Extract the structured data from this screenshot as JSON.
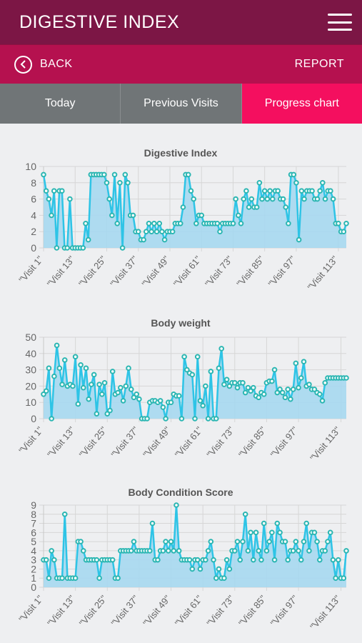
{
  "header": {
    "title": "DIGESTIVE INDEX"
  },
  "nav": {
    "back_label": "BACK",
    "report_label": "REPORT"
  },
  "tabs": [
    {
      "label": "Today",
      "active": false
    },
    {
      "label": "Previous Visits",
      "active": false
    },
    {
      "label": "Progress chart",
      "active": true
    }
  ],
  "colors": {
    "topbar": "#7c1645",
    "navbar": "#b5114f",
    "tab": "#707577",
    "tab_active": "#f40f5f",
    "line": "#2ec4e6",
    "fill": "#a6d8f0",
    "point": "#2bb6b2"
  },
  "chart_data": [
    {
      "type": "area",
      "title": "Digestive Index",
      "ylim": [
        0,
        10
      ],
      "yticks": [
        0,
        2,
        4,
        6,
        8,
        10
      ],
      "xtick_labels": [
        "\"Visit 1\"",
        "\"Visit 13\"",
        "\"Visit 25\"",
        "\"Visit 37\"",
        "\"Visit 49\"",
        "\"Visit 61\"",
        "\"Visit 73\"",
        "\"Visit 85\"",
        "\"Visit 97\"",
        "\"Visit 113\""
      ],
      "xtick_positions": [
        1,
        13,
        25,
        37,
        49,
        61,
        73,
        85,
        97,
        113
      ],
      "grid": true,
      "values": [
        9,
        7,
        6,
        4,
        7,
        0,
        7,
        7,
        0,
        0,
        6,
        0,
        0,
        0,
        0,
        0,
        3,
        1,
        9,
        9,
        9,
        9,
        9,
        9,
        8,
        6,
        4,
        9,
        3,
        8,
        0,
        9,
        8,
        4,
        4,
        2,
        2,
        1,
        1,
        2,
        3,
        2,
        3,
        2,
        3,
        2,
        1,
        2,
        2,
        2,
        3,
        3,
        3,
        5,
        9,
        9,
        7,
        6,
        3,
        4,
        4,
        3,
        3,
        3,
        3,
        3,
        3,
        2,
        3,
        3,
        3,
        3,
        3,
        6,
        4,
        3,
        6,
        7,
        5,
        6,
        5,
        5,
        8,
        6,
        7,
        6,
        7,
        6,
        7,
        7,
        6,
        6,
        5,
        3,
        9,
        9,
        8,
        1,
        7,
        6,
        7,
        7,
        7,
        6,
        6,
        7,
        8,
        6,
        7,
        7,
        6,
        3,
        3,
        2,
        2,
        3
      ]
    },
    {
      "type": "area",
      "title": "Body weight",
      "ylim": [
        0,
        50
      ],
      "yticks": [
        0,
        10,
        20,
        30,
        40,
        50
      ],
      "xtick_labels": [
        "\"Visit 1\"",
        "\"Visit 13\"",
        "\"Visit 25\"",
        "\"Visit 37\"",
        "\"Visit 49\"",
        "\"Visit 61\"",
        "\"Visit 73\"",
        "\"Visit 85\"",
        "\"Visit 97\"",
        "\"Visit 113\""
      ],
      "xtick_positions": [
        1,
        13,
        25,
        37,
        49,
        61,
        73,
        85,
        97,
        113
      ],
      "grid": true,
      "values": [
        15,
        17,
        31,
        0,
        26,
        45,
        31,
        21,
        36,
        20,
        21,
        20,
        38,
        9,
        33,
        19,
        31,
        12,
        21,
        27,
        3,
        21,
        15,
        22,
        3,
        5,
        29,
        15,
        16,
        19,
        11,
        20,
        31,
        18,
        13,
        15,
        12,
        0,
        0,
        0,
        10,
        11,
        11,
        10,
        11,
        7,
        0,
        10,
        10,
        15,
        14,
        14,
        0,
        38,
        30,
        28,
        27,
        0,
        38,
        11,
        8,
        20,
        0,
        29,
        0,
        0,
        31,
        43,
        21,
        24,
        20,
        22,
        22,
        19,
        22,
        22,
        16,
        19,
        17,
        19,
        14,
        13,
        16,
        15,
        22,
        23,
        23,
        30,
        16,
        18,
        16,
        13,
        18,
        12,
        18,
        34,
        19,
        25,
        35,
        20,
        21,
        18,
        18,
        16,
        15,
        11,
        22,
        25,
        25,
        25,
        25,
        25,
        25,
        25,
        25
      ]
    },
    {
      "type": "area",
      "title": "Body Condition Score",
      "ylim": [
        0,
        9
      ],
      "yticks": [
        0,
        1,
        2,
        3,
        4,
        5,
        6,
        7,
        8,
        9
      ],
      "xtick_labels": [
        "\"Visit 1\"",
        "\"Visit 13\"",
        "\"Visit 25\"",
        "\"Visit 37\"",
        "\"Visit 49\"",
        "\"Visit 61\"",
        "\"Visit 73\"",
        "\"Visit 85\"",
        "\"Visit 97\"",
        "\"Visit 113\""
      ],
      "xtick_positions": [
        1,
        13,
        25,
        37,
        49,
        61,
        73,
        85,
        97,
        113
      ],
      "grid": true,
      "values": [
        3,
        3,
        1,
        4,
        3,
        1,
        1,
        1,
        8,
        1,
        1,
        1,
        1,
        5,
        5,
        4,
        3,
        3,
        3,
        3,
        3,
        1,
        3,
        3,
        3,
        3,
        3,
        1,
        1,
        4,
        4,
        4,
        4,
        4,
        5,
        4,
        4,
        4,
        4,
        4,
        4,
        7,
        3,
        3,
        4,
        4,
        5,
        4,
        5,
        4,
        9,
        4,
        3,
        3,
        3,
        3,
        2,
        3,
        3,
        2,
        3,
        3,
        4,
        5,
        3,
        1,
        2,
        1,
        1,
        3,
        2,
        4,
        4,
        5,
        3,
        5,
        8,
        4,
        6,
        3,
        6,
        4,
        3,
        7,
        4,
        5,
        6,
        3,
        7,
        6,
        5,
        5,
        3,
        4,
        4,
        5,
        4,
        3,
        5,
        7,
        4,
        6,
        6,
        5,
        3,
        4,
        4,
        5,
        6,
        3,
        1,
        3,
        1,
        1,
        4
      ]
    }
  ]
}
